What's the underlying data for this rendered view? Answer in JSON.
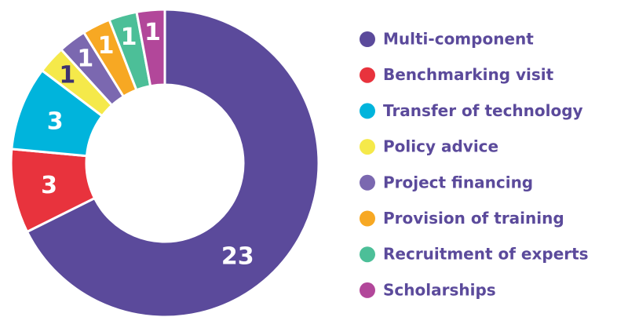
{
  "chart_data": {
    "type": "donut",
    "categories": [
      "Multi-component",
      "Benchmarking visit",
      "Transfer of technology",
      "Policy advice",
      "Project financing",
      "Provision of training",
      "Recruitment of experts",
      "Scholarships"
    ],
    "values": [
      23,
      3,
      3,
      1,
      1,
      1,
      1,
      1
    ],
    "colors": [
      "#5b4a9b",
      "#e8333d",
      "#00b4dc",
      "#f5e94a",
      "#7b68b0",
      "#f7a823",
      "#4cbf98",
      "#b2479a"
    ]
  }
}
